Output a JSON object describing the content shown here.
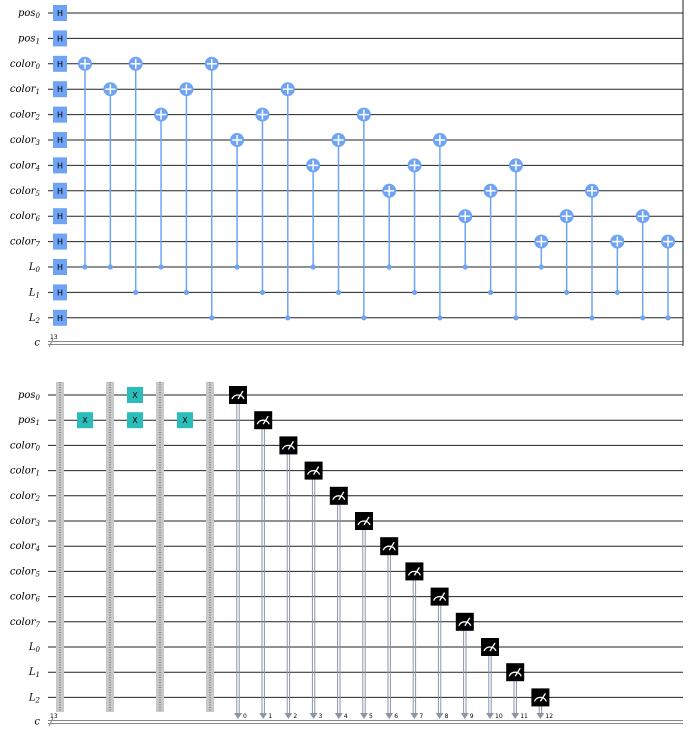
{
  "qubits": [
    {
      "name": "pos",
      "sub": "0"
    },
    {
      "name": "pos",
      "sub": "1"
    },
    {
      "name": "color",
      "sub": "0"
    },
    {
      "name": "color",
      "sub": "1"
    },
    {
      "name": "color",
      "sub": "2"
    },
    {
      "name": "color",
      "sub": "3"
    },
    {
      "name": "color",
      "sub": "4"
    },
    {
      "name": "color",
      "sub": "5"
    },
    {
      "name": "color",
      "sub": "6"
    },
    {
      "name": "color",
      "sub": "7"
    },
    {
      "name": "L",
      "sub": "0"
    },
    {
      "name": "L",
      "sub": "1"
    },
    {
      "name": "L",
      "sub": "2"
    }
  ],
  "classical": {
    "name": "c",
    "width": "13"
  },
  "gate_labels": {
    "h": "H",
    "x": "X"
  },
  "measure_labels": [
    "0",
    "1",
    "2",
    "3",
    "4",
    "5",
    "6",
    "7",
    "8",
    "9",
    "10",
    "11",
    "12"
  ]
}
